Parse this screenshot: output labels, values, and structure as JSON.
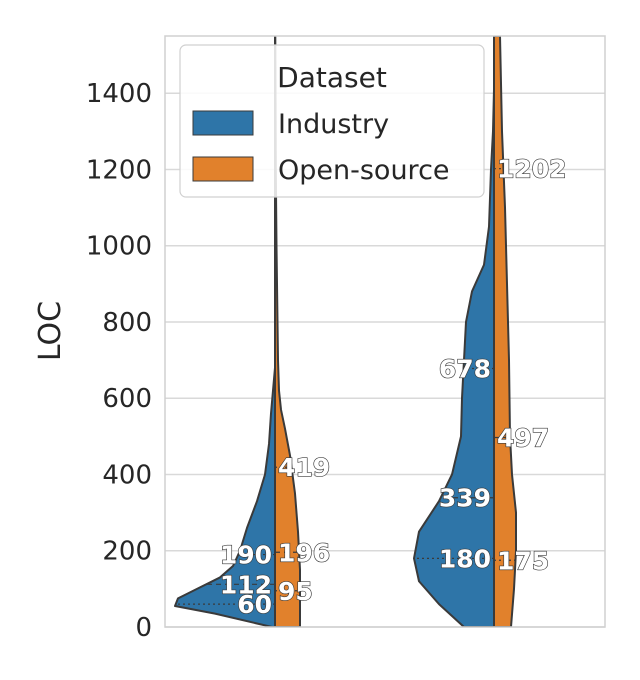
{
  "chart_data": {
    "type": "violin",
    "split": true,
    "ylabel": "LOC",
    "ylim": [
      0,
      1550
    ],
    "yticks": [
      0,
      200,
      400,
      600,
      800,
      1000,
      1200,
      1400
    ],
    "grid": true,
    "legend": {
      "title": "Dataset",
      "placement": "top-left",
      "entries": [
        {
          "label": "Industry",
          "color": "#2e75a8"
        },
        {
          "label": "Open-source",
          "color": "#e1812c"
        }
      ]
    },
    "colors": {
      "industry": "#2e75a8",
      "open_source": "#e1812c",
      "grid": "#d9d9d9",
      "outline": "#3a3a3a"
    },
    "groups": [
      {
        "industry": {
          "quartiles": [
            60,
            112,
            190
          ],
          "labels": [
            "60",
            "112",
            "190"
          ],
          "density": [
            [
              0,
              0.03
            ],
            [
              35,
              0.6
            ],
            [
              55,
              1.0
            ],
            [
              75,
              0.97
            ],
            [
              100,
              0.78
            ],
            [
              130,
              0.55
            ],
            [
              160,
              0.42
            ],
            [
              200,
              0.35
            ],
            [
              260,
              0.28
            ],
            [
              330,
              0.18
            ],
            [
              400,
              0.1
            ],
            [
              480,
              0.06
            ],
            [
              560,
              0.04
            ],
            [
              620,
              0.02
            ],
            [
              680,
              0.0
            ]
          ]
        },
        "open_source": {
          "quartiles": [
            95,
            196,
            419
          ],
          "labels": [
            "95",
            "196",
            "419"
          ],
          "density": [
            [
              0,
              0.25
            ],
            [
              60,
              0.25
            ],
            [
              150,
              0.25
            ],
            [
              250,
              0.23
            ],
            [
              350,
              0.2
            ],
            [
              450,
              0.15
            ],
            [
              520,
              0.1
            ],
            [
              570,
              0.06
            ],
            [
              620,
              0.04
            ],
            [
              700,
              0.03
            ],
            [
              800,
              0.025
            ],
            [
              1000,
              0.015
            ],
            [
              1200,
              0.008
            ],
            [
              1550,
              0.003
            ]
          ]
        }
      },
      {
        "industry": {
          "quartiles": [
            180,
            339,
            678
          ],
          "labels": [
            "180",
            "339",
            "678"
          ],
          "density": [
            [
              0,
              0.3
            ],
            [
              60,
              0.55
            ],
            [
              120,
              0.75
            ],
            [
              180,
              0.8
            ],
            [
              250,
              0.75
            ],
            [
              330,
              0.55
            ],
            [
              400,
              0.42
            ],
            [
              500,
              0.33
            ],
            [
              600,
              0.32
            ],
            [
              700,
              0.3
            ],
            [
              800,
              0.28
            ],
            [
              880,
              0.22
            ],
            [
              950,
              0.1
            ],
            [
              1050,
              0.05
            ],
            [
              1200,
              0.03
            ],
            [
              1300,
              0.01
            ],
            [
              1410,
              0.0
            ]
          ]
        },
        "open_source": {
          "quartiles": [
            175,
            497,
            1202
          ],
          "labels": [
            "175",
            "497",
            "1202"
          ],
          "density": [
            [
              0,
              0.17
            ],
            [
              100,
              0.2
            ],
            [
              200,
              0.22
            ],
            [
              300,
              0.22
            ],
            [
              400,
              0.18
            ],
            [
              500,
              0.16
            ],
            [
              700,
              0.15
            ],
            [
              900,
              0.13
            ],
            [
              1100,
              0.11
            ],
            [
              1300,
              0.08
            ],
            [
              1550,
              0.06
            ]
          ]
        }
      }
    ]
  }
}
